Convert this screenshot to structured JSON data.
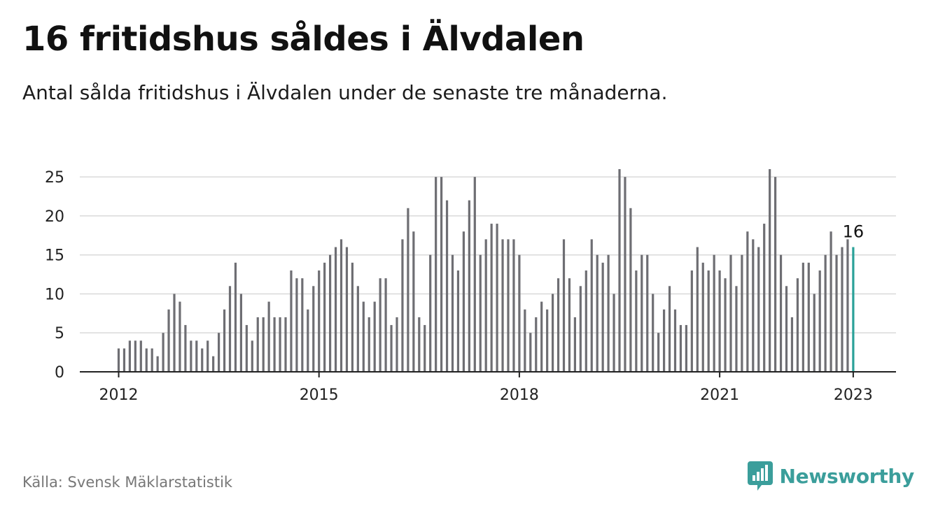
{
  "title": "16 fritidshus såldes i Älvdalen",
  "subtitle": "Antal sålda fritidshus i Älvdalen under de senaste tre månaderna.",
  "source": "Källa: Svensk Mäklarstatistik",
  "brand": {
    "name": "Newsworthy",
    "icon": "newsworthy-logo-icon",
    "color": "#3b9e9b"
  },
  "colors": {
    "bar": "#6e6e73",
    "highlight": "#2aa198",
    "grid": "#d9d9d9",
    "axis": "#222222"
  },
  "chart_data": {
    "type": "bar",
    "x_start": "2012-01",
    "x_step": "month",
    "ylim": [
      0,
      26
    ],
    "y_ticks": [
      "0",
      "5",
      "10",
      "15",
      "20",
      "25"
    ],
    "x_ticks": [
      "2012",
      "2015",
      "2018",
      "2021",
      "2023"
    ],
    "grid": true,
    "values": [
      3,
      3,
      4,
      4,
      4,
      3,
      3,
      2,
      5,
      8,
      10,
      9,
      6,
      4,
      4,
      3,
      4,
      2,
      5,
      8,
      11,
      14,
      10,
      6,
      4,
      7,
      7,
      9,
      7,
      7,
      7,
      13,
      12,
      12,
      8,
      11,
      13,
      14,
      15,
      16,
      17,
      16,
      14,
      11,
      9,
      7,
      9,
      12,
      12,
      6,
      7,
      17,
      21,
      18,
      7,
      6,
      15,
      25,
      25,
      22,
      15,
      13,
      18,
      22,
      25,
      15,
      17,
      19,
      19,
      17,
      17,
      17,
      15,
      8,
      5,
      7,
      9,
      8,
      10,
      12,
      17,
      12,
      7,
      11,
      13,
      17,
      15,
      14,
      15,
      10,
      26,
      25,
      21,
      13,
      15,
      15,
      10,
      5,
      8,
      11,
      8,
      6,
      6,
      13,
      16,
      14,
      13,
      15,
      13,
      12,
      15,
      11,
      15,
      18,
      17,
      16,
      19,
      26,
      25,
      15,
      11,
      7,
      12,
      14,
      14,
      10,
      13,
      15,
      18,
      15,
      16,
      17,
      16
    ],
    "highlight_last": true,
    "last_label": "16"
  }
}
